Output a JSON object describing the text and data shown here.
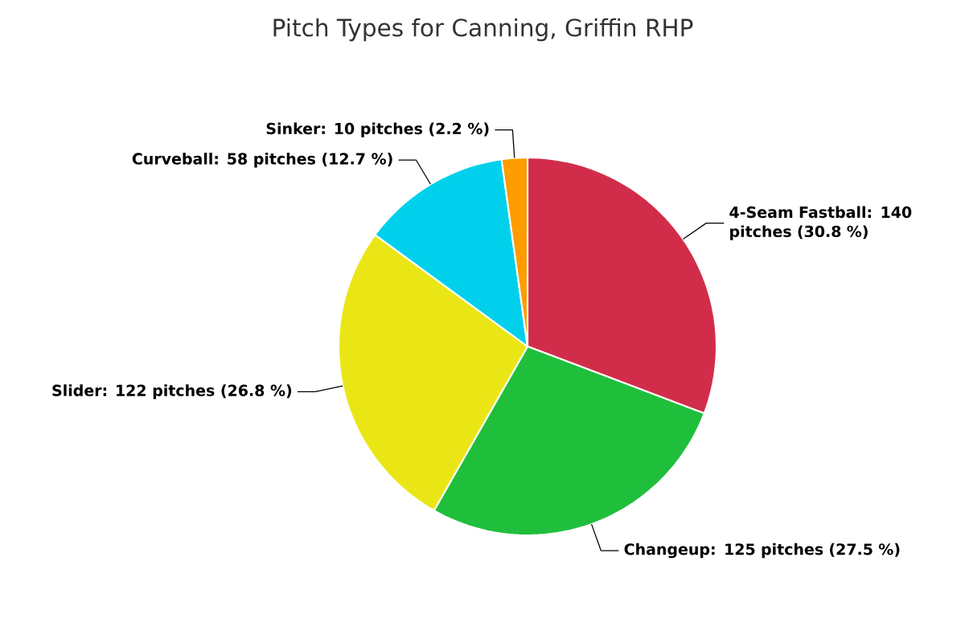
{
  "chart_data": {
    "type": "pie",
    "title": "Pitch Types for Canning, Griffin RHP",
    "categories": [
      "4-Seam Fastball: 140 pitches (30.8 %)",
      "Changeup: 125 pitches (27.5 %)",
      "Slider: 122 pitches (26.8 %)",
      "Curveball: 58 pitches (12.7 %)",
      "Sinker: 10 pitches (2.2 %)"
    ],
    "values": [
      140,
      125,
      122,
      58,
      10
    ],
    "colors": [
      "#d12d4a",
      "#1fbf3c",
      "#eae616",
      "#00d0ec",
      "#ff9c00"
    ]
  }
}
